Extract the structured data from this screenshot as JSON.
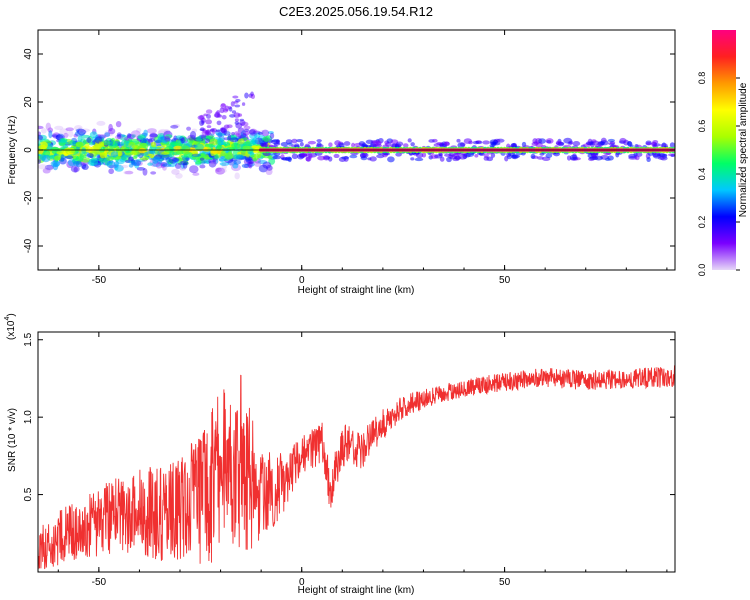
{
  "figure": {
    "title": "C2E3.2025.056.19.54.R12"
  },
  "chart_data": [
    {
      "type": "heatmap",
      "title": "C2E3.2025.056.19.54.R12",
      "xlabel": "Height of straight line (km)",
      "ylabel": "Frequency (Hz)",
      "xlim": [
        -65,
        92
      ],
      "ylim": [
        -50,
        50
      ],
      "xticks": [
        -50,
        0,
        50
      ],
      "yticks": [
        -40,
        -20,
        0,
        20,
        40
      ],
      "grid": false,
      "colorbar": {
        "label": "Normalized spectral amplitude",
        "range": [
          0,
          1
        ],
        "ticks": [
          "0.0",
          "0.2",
          "0.4",
          "0.6",
          "0.8"
        ],
        "colormap": [
          "#e6d7f7",
          "#7a00ff",
          "#0000ff",
          "#00c8ff",
          "#00ff66",
          "#aaff00",
          "#ffff00",
          "#ff9900",
          "#ff2020",
          "#ff007f"
        ]
      },
      "description_points": {
        "trend_line_y": 0,
        "scatter_region_x": [
          -65,
          -10
        ],
        "strong_line_region_x": [
          -10,
          92
        ],
        "high_freq_cluster_x": [
          -25,
          -12
        ],
        "high_freq_cluster_y": [
          5,
          27
        ]
      }
    },
    {
      "type": "line",
      "xlabel": "Height of straight line (km)",
      "ylabel": "SNR (10 * v/v)",
      "y_scale_label": "(x10",
      "y_scale_exp": "4",
      "xlim": [
        -65,
        92
      ],
      "ylim": [
        0,
        1.55
      ],
      "xticks": [
        -50,
        0,
        50
      ],
      "yticks": [
        0.5,
        1.0,
        1.5
      ],
      "ytick_labels": [
        "0.5",
        "1.0",
        "1.5"
      ],
      "color": "#f03030",
      "envelope": {
        "x": [
          -65,
          -55,
          -45,
          -35,
          -25,
          -20,
          -15,
          -10,
          -5,
          0,
          5,
          7,
          10,
          15,
          20,
          25,
          30,
          40,
          50,
          60,
          70,
          80,
          92
        ],
        "y": [
          0.18,
          0.32,
          0.42,
          0.45,
          0.55,
          0.75,
          0.82,
          0.55,
          0.6,
          0.78,
          0.86,
          0.55,
          0.85,
          0.82,
          0.98,
          1.08,
          1.13,
          1.2,
          1.24,
          1.27,
          1.25,
          1.26,
          1.28
        ]
      },
      "noise_amplitude": {
        "x": [
          -65,
          -45,
          -30,
          -20,
          -15,
          -10,
          0,
          10,
          20,
          30,
          50,
          92
        ],
        "y": [
          0.15,
          0.25,
          0.35,
          0.55,
          0.6,
          0.3,
          0.12,
          0.15,
          0.1,
          0.06,
          0.06,
          0.07
        ]
      }
    }
  ]
}
